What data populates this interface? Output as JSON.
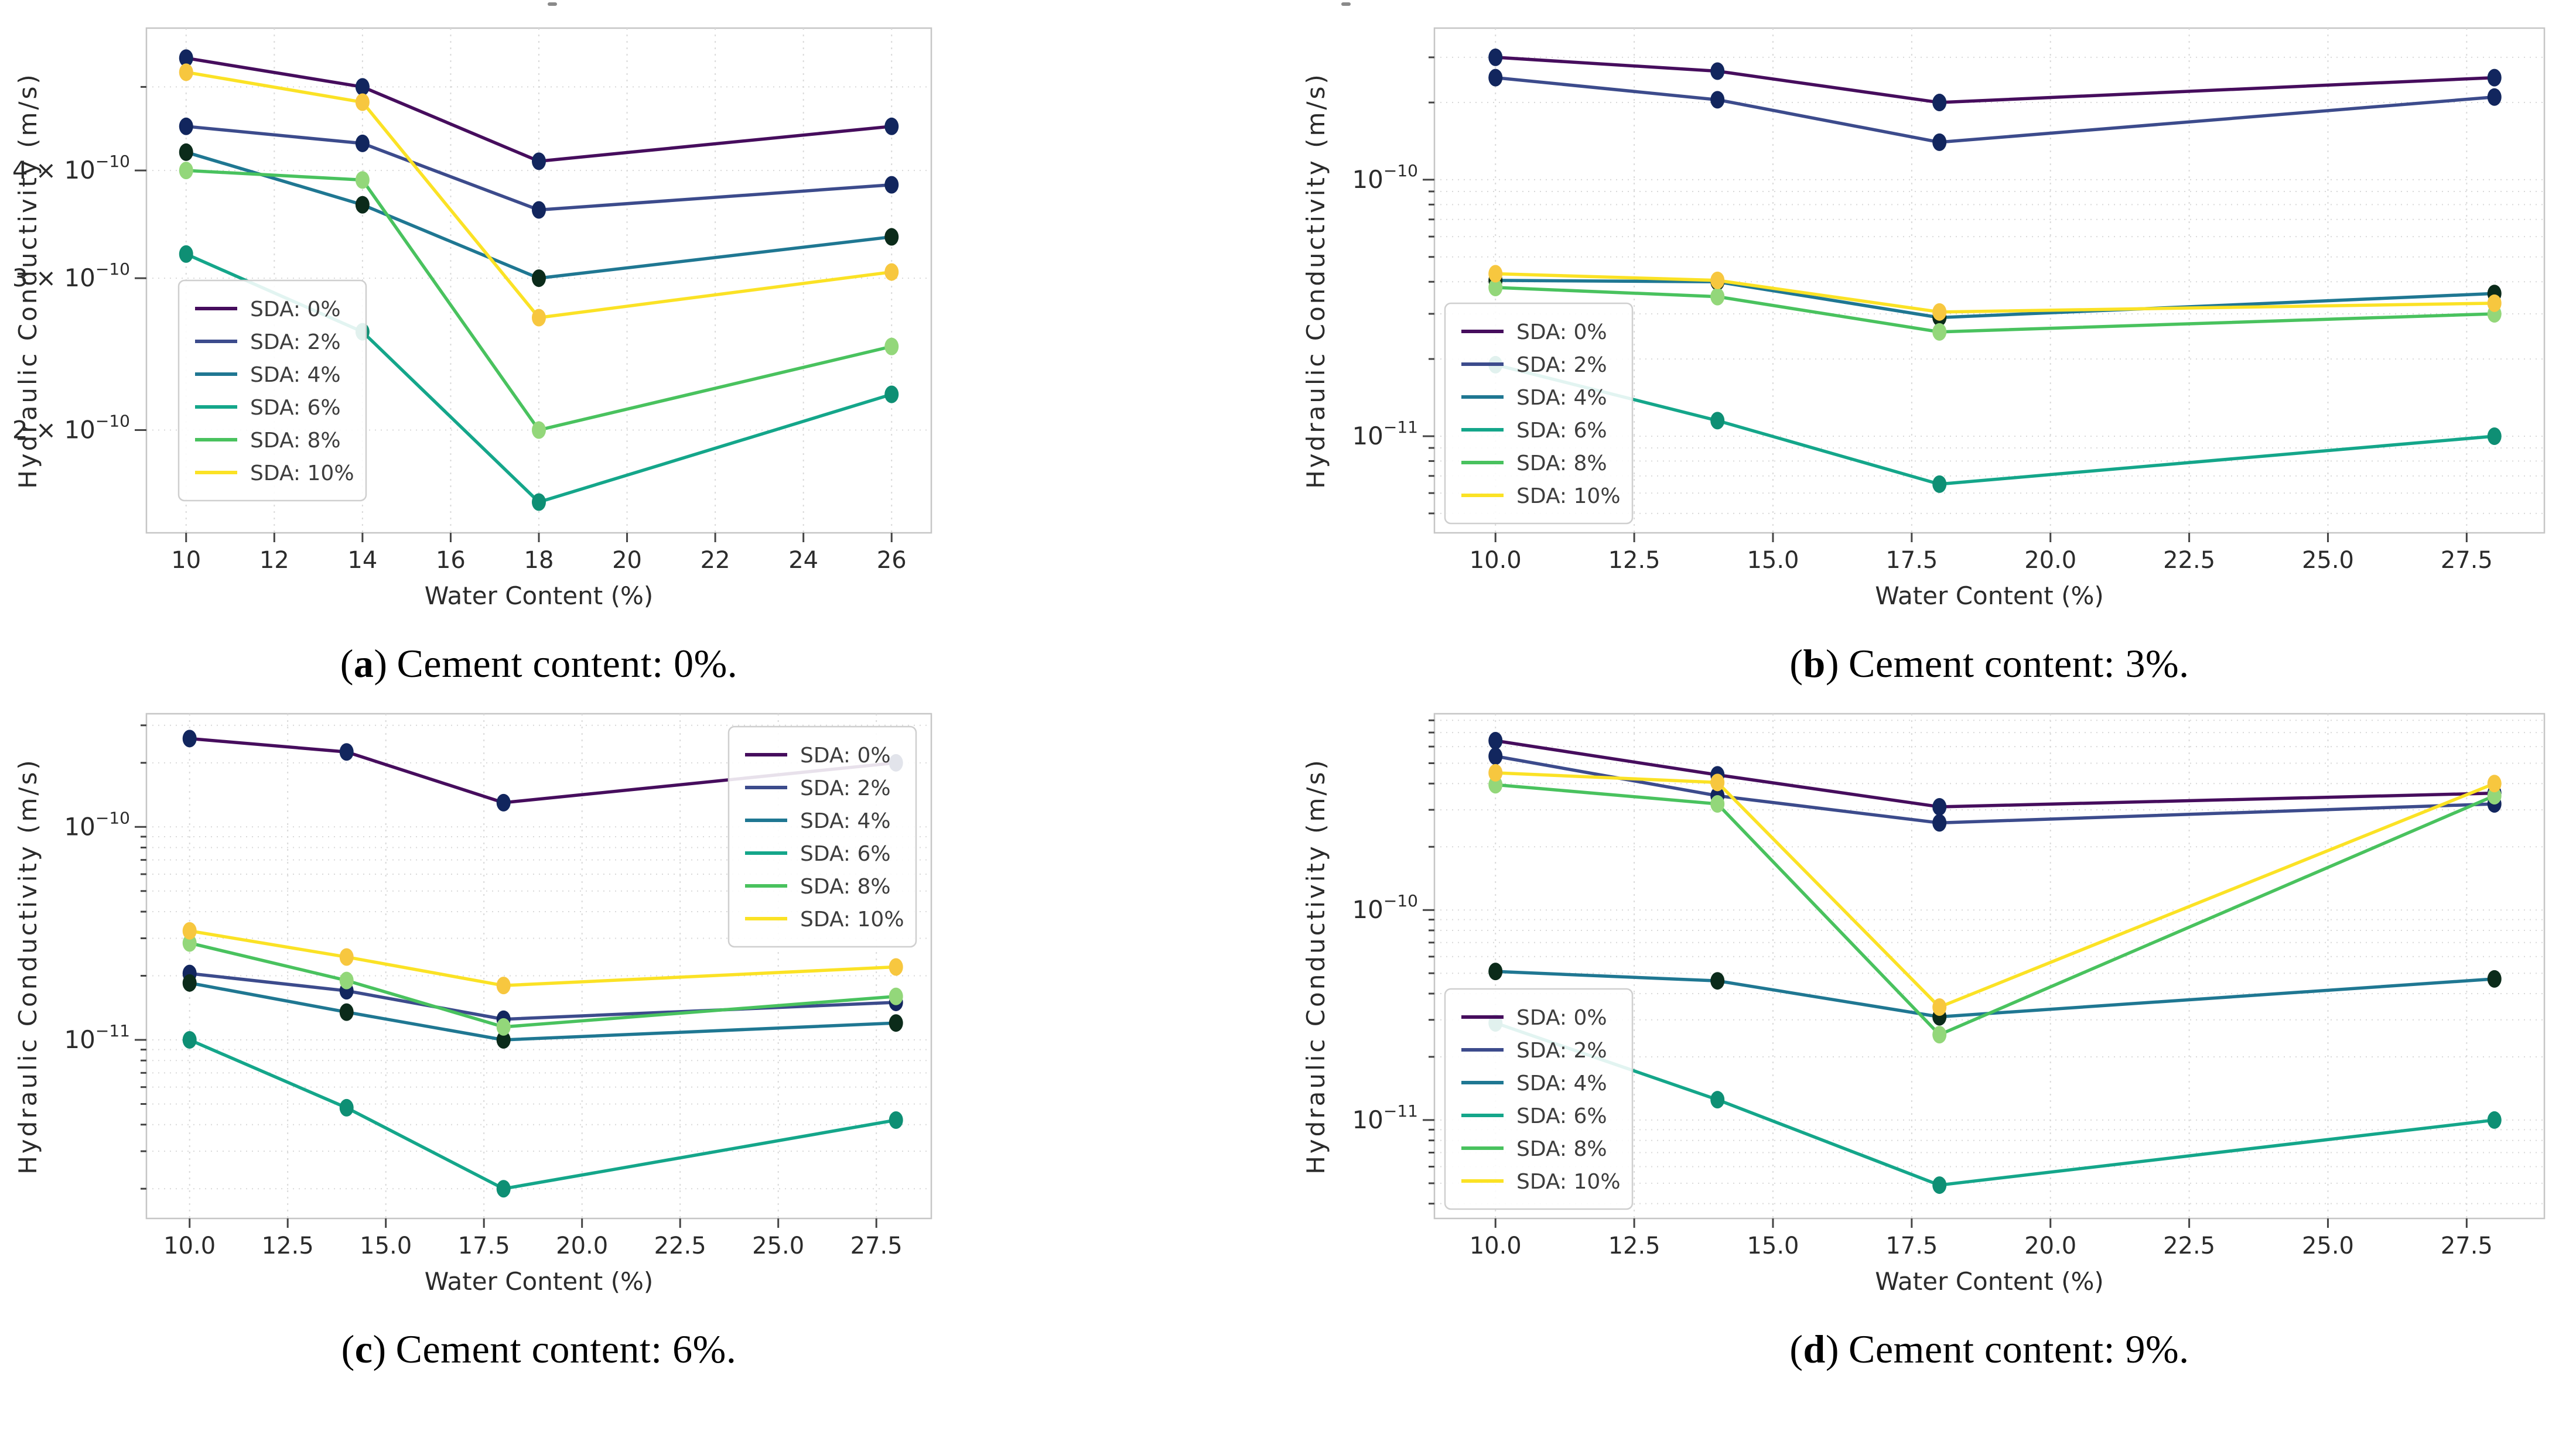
{
  "figure": {
    "xlabel": "Water Content (%)",
    "ylabel": "Hydraulic Conductivity (m/s)",
    "background": "#ffffff",
    "grid_color": "#d9d9d9",
    "spine_color": "#c6c6c6",
    "text_color": "#2b2b2b",
    "legend_title": null
  },
  "series_styles": [
    {
      "name": "SDA: 0%",
      "line": "#460d5d",
      "marker": "#12265e"
    },
    {
      "name": "SDA: 2%",
      "line": "#3c4b8c",
      "marker": "#12265e"
    },
    {
      "name": "SDA: 4%",
      "line": "#1f7792",
      "marker": "#0b2b1a"
    },
    {
      "name": "SDA: 6%",
      "line": "#14a68a",
      "marker": "#0e8f74"
    },
    {
      "name": "SDA: 8%",
      "line": "#49c25e",
      "marker": "#93d77a"
    },
    {
      "name": "SDA: 10%",
      "line": "#fbe225",
      "marker": "#f7c73f"
    }
  ],
  "chart_data": [
    {
      "id": "a",
      "type": "line",
      "yscale": "log",
      "grid": true,
      "caption": {
        "open": "(",
        "letter": "a",
        "close": ")",
        "text": "Cement content: 0%."
      },
      "xlabel": "Water Content (%)",
      "ylabel": "Hydraulic Conductivity (m/s)",
      "x": [
        10,
        14,
        18,
        26
      ],
      "xlim": [
        9.1,
        26.9
      ],
      "xticks": [
        10,
        12,
        14,
        16,
        18,
        20,
        22,
        24,
        26
      ],
      "xtick_labels": [
        "10",
        "12",
        "14",
        "16",
        "18",
        "20",
        "22",
        "24",
        "26"
      ],
      "ylim": [
        1.52e-10,
        5.85e-10
      ],
      "ytick_labels": [
        {
          "v": 4e-10,
          "base": "4 × 10",
          "exp": "−10"
        },
        {
          "v": 3e-10,
          "base": "3 × 10",
          "exp": "−10"
        },
        {
          "v": 2e-10,
          "base": "2 × 10",
          "exp": "−10"
        }
      ],
      "legend_position": "mid-left",
      "series": [
        {
          "name": "SDA: 0%",
          "y": [
            5.4e-10,
            5e-10,
            4.1e-10,
            4.5e-10
          ]
        },
        {
          "name": "SDA: 2%",
          "y": [
            4.5e-10,
            4.3e-10,
            3.6e-10,
            3.85e-10
          ]
        },
        {
          "name": "SDA: 4%",
          "y": [
            4.2e-10,
            3.65e-10,
            3e-10,
            3.35e-10
          ]
        },
        {
          "name": "SDA: 6%",
          "y": [
            3.2e-10,
            2.6e-10,
            1.65e-10,
            2.2e-10
          ]
        },
        {
          "name": "SDA: 8%",
          "y": [
            4e-10,
            3.9e-10,
            2e-10,
            2.5e-10
          ]
        },
        {
          "name": "SDA: 10%",
          "y": [
            5.2e-10,
            4.8e-10,
            2.7e-10,
            3.05e-10
          ]
        }
      ]
    },
    {
      "id": "b",
      "type": "line",
      "yscale": "log",
      "grid": true,
      "caption": {
        "open": "(",
        "letter": "b",
        "close": ")",
        "text": "Cement content: 3%."
      },
      "xlabel": "Water Content (%)",
      "ylabel": "Hydraulic Conductivity (m/s)",
      "x": [
        10,
        14,
        18,
        28
      ],
      "xlim": [
        8.9,
        28.9
      ],
      "xticks": [
        10,
        12.5,
        15,
        17.5,
        20,
        22.5,
        25,
        27.5
      ],
      "xtick_labels": [
        "10.0",
        "12.5",
        "15.0",
        "17.5",
        "20.0",
        "22.5",
        "25.0",
        "27.5"
      ],
      "ylim": [
        4.2e-12,
        3.9e-10
      ],
      "ytick_labels": [
        {
          "v": 1e-10,
          "base": "10",
          "exp": "−10"
        },
        {
          "v": 1e-11,
          "base": "10",
          "exp": "−11"
        }
      ],
      "legend_position": "bottom-left",
      "series": [
        {
          "name": "SDA: 0%",
          "y": [
            3e-10,
            2.65e-10,
            2e-10,
            2.5e-10
          ]
        },
        {
          "name": "SDA: 2%",
          "y": [
            2.5e-10,
            2.05e-10,
            1.4e-10,
            2.1e-10
          ]
        },
        {
          "name": "SDA: 4%",
          "y": [
            4.05e-11,
            4e-11,
            2.9e-11,
            3.6e-11
          ]
        },
        {
          "name": "SDA: 6%",
          "y": [
            1.9e-11,
            1.15e-11,
            6.5e-12,
            1e-11
          ]
        },
        {
          "name": "SDA: 8%",
          "y": [
            3.8e-11,
            3.5e-11,
            2.55e-11,
            3e-11
          ]
        },
        {
          "name": "SDA: 10%",
          "y": [
            4.3e-11,
            4.05e-11,
            3.05e-11,
            3.3e-11
          ]
        }
      ]
    },
    {
      "id": "c",
      "type": "line",
      "yscale": "log",
      "grid": true,
      "caption": {
        "open": "(",
        "letter": "c",
        "close": ")",
        "text": "Cement content: 6%."
      },
      "xlabel": "Water Content (%)",
      "ylabel": "Hydraulic Conductivity (m/s)",
      "x": [
        10,
        14,
        18,
        28
      ],
      "xlim": [
        8.9,
        28.9
      ],
      "xticks": [
        10,
        12.5,
        15,
        17.5,
        20,
        22.5,
        25,
        27.5
      ],
      "xtick_labels": [
        "10.0",
        "12.5",
        "15.0",
        "17.5",
        "20.0",
        "22.5",
        "25.0",
        "27.5"
      ],
      "ylim": [
        1.45e-12,
        3.4e-10
      ],
      "ytick_labels": [
        {
          "v": 1e-10,
          "base": "10",
          "exp": "−10"
        },
        {
          "v": 1e-11,
          "base": "10",
          "exp": "−11"
        }
      ],
      "legend_position": "top-right",
      "series": [
        {
          "name": "SDA: 0%",
          "y": [
            2.6e-10,
            2.25e-10,
            1.3e-10,
            2e-10
          ]
        },
        {
          "name": "SDA: 2%",
          "y": [
            2.05e-11,
            1.7e-11,
            1.25e-11,
            1.5e-11
          ]
        },
        {
          "name": "SDA: 4%",
          "y": [
            1.85e-11,
            1.35e-11,
            1e-11,
            1.2e-11
          ]
        },
        {
          "name": "SDA: 6%",
          "y": [
            1e-11,
            4.8e-12,
            2e-12,
            4.2e-12
          ]
        },
        {
          "name": "SDA: 8%",
          "y": [
            2.85e-11,
            1.9e-11,
            1.15e-11,
            1.6e-11
          ]
        },
        {
          "name": "SDA: 10%",
          "y": [
            3.25e-11,
            2.45e-11,
            1.8e-11,
            2.2e-11
          ]
        }
      ]
    },
    {
      "id": "d",
      "type": "line",
      "yscale": "log",
      "grid": true,
      "caption": {
        "open": "(",
        "letter": "d",
        "close": ")",
        "text": "Cement content: 9%."
      },
      "xlabel": "Water Content (%)",
      "ylabel": "Hydraulic Conductivity (m/s)",
      "x": [
        10,
        14,
        18,
        28
      ],
      "xlim": [
        8.9,
        28.9
      ],
      "xticks": [
        10,
        12.5,
        15,
        17.5,
        20,
        22.5,
        25,
        27.5
      ],
      "xtick_labels": [
        "10.0",
        "12.5",
        "15.0",
        "17.5",
        "20.0",
        "22.5",
        "25.0",
        "27.5"
      ],
      "ylim": [
        3.4e-12,
        8.6e-10
      ],
      "ytick_labels": [
        {
          "v": 1e-10,
          "base": "10",
          "exp": "−10"
        },
        {
          "v": 1e-11,
          "base": "10",
          "exp": "−11"
        }
      ],
      "legend_position": "bottom-left",
      "series": [
        {
          "name": "SDA: 0%",
          "y": [
            6.4e-10,
            4.4e-10,
            3.1e-10,
            3.6e-10
          ]
        },
        {
          "name": "SDA: 2%",
          "y": [
            5.4e-10,
            3.5e-10,
            2.6e-10,
            3.2e-10
          ]
        },
        {
          "name": "SDA: 4%",
          "y": [
            5.1e-11,
            4.6e-11,
            3.1e-11,
            4.7e-11
          ]
        },
        {
          "name": "SDA: 6%",
          "y": [
            2.9e-11,
            1.25e-11,
            4.9e-12,
            1e-11
          ]
        },
        {
          "name": "SDA: 8%",
          "y": [
            3.95e-10,
            3.2e-10,
            2.55e-11,
            3.5e-10
          ]
        },
        {
          "name": "SDA: 10%",
          "y": [
            4.5e-10,
            4.05e-10,
            3.45e-11,
            4e-10
          ]
        }
      ]
    }
  ]
}
